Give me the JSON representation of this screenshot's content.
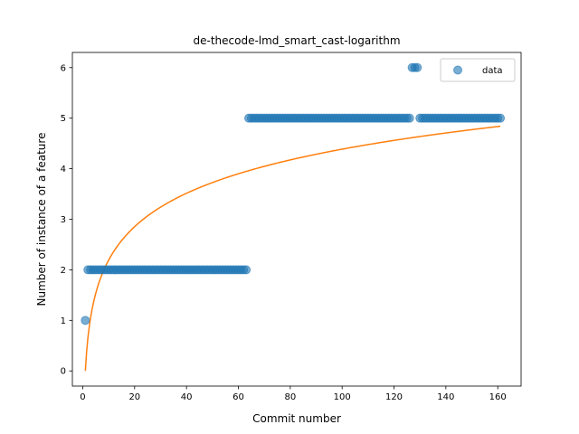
{
  "chart_data": {
    "type": "scatter",
    "title": "de-thecode-lmd_smart_cast-logarithm",
    "xlabel": "Commit number",
    "ylabel": "Number of instance of a feature",
    "xlim": [
      -4.0,
      169.0
    ],
    "ylim": [
      -0.3,
      6.3
    ],
    "xticks": [
      0,
      20,
      40,
      60,
      80,
      100,
      120,
      140,
      160
    ],
    "yticks": [
      0,
      1,
      2,
      3,
      4,
      5,
      6
    ],
    "legend": {
      "entries": [
        "data"
      ],
      "placement": "top-right"
    },
    "colors": {
      "data": "#1f77b4",
      "fit": "#ff7f0e"
    },
    "series": [
      {
        "name": "data",
        "kind": "scatter",
        "segments": [
          {
            "x_start": 1,
            "x_end": 1,
            "y": 1
          },
          {
            "x_start": 2,
            "x_end": 63,
            "y": 2
          },
          {
            "x_start": 64,
            "x_end": 126,
            "y": 5
          },
          {
            "x_start": 127,
            "x_end": 129,
            "y": 6
          },
          {
            "x_start": 130,
            "x_end": 161,
            "y": 5
          }
        ]
      },
      {
        "kind": "line",
        "curve": "logarithmic",
        "x_range": [
          1,
          161
        ],
        "points": [
          [
            1,
            0.0
          ],
          [
            2,
            0.66
          ],
          [
            4,
            1.31
          ],
          [
            8,
            1.97
          ],
          [
            16,
            2.63
          ],
          [
            32,
            3.29
          ],
          [
            64,
            3.95
          ],
          [
            128,
            4.61
          ],
          [
            161,
            4.84
          ]
        ]
      }
    ]
  }
}
